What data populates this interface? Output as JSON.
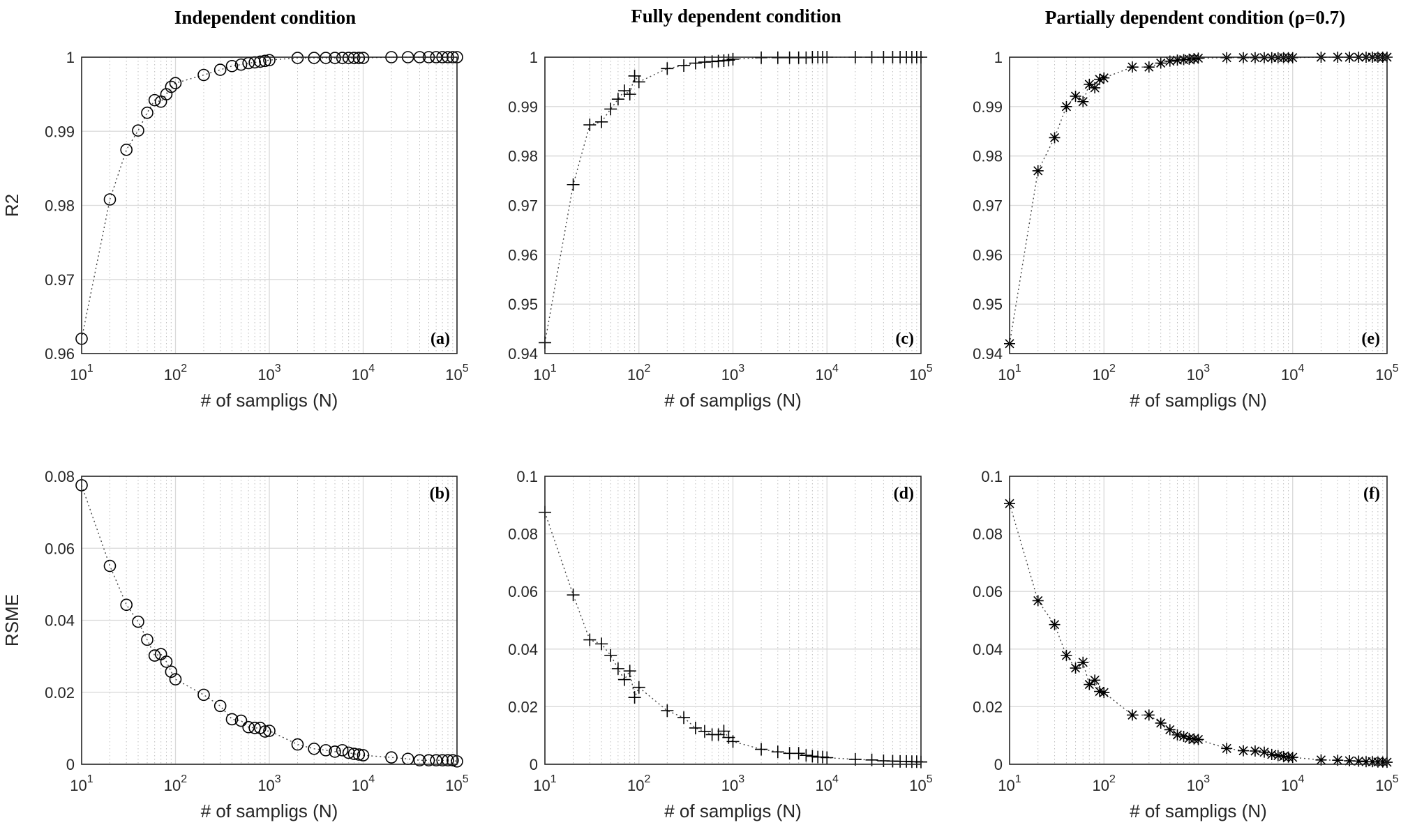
{
  "figure": {
    "col_titles": [
      "Independent condition",
      "Fully dependent condition",
      "Partially dependent condition (ρ=0.7)"
    ],
    "row_ylabels": [
      "R2",
      "RSME"
    ]
  },
  "chart_data": [
    {
      "id": "a",
      "type": "scatter",
      "tag": "(a)",
      "marker": "circle",
      "xlabel": "# of sampligs (N)",
      "ylabel": "R2",
      "xscale": "log",
      "xlim": [
        10,
        100000
      ],
      "ylim": [
        0.96,
        1.0
      ],
      "yticks": [
        "0.96",
        "0.97",
        "0.98",
        "0.99",
        "1"
      ],
      "ytick_values": [
        0.96,
        0.97,
        0.98,
        0.99,
        1.0
      ],
      "xticks": [
        {
          "base": "10",
          "exp": "1"
        },
        {
          "base": "10",
          "exp": "2"
        },
        {
          "base": "10",
          "exp": "3"
        },
        {
          "base": "10",
          "exp": "4"
        },
        {
          "base": "10",
          "exp": "5"
        }
      ],
      "x": [
        10,
        20,
        30,
        40,
        50,
        60,
        70,
        80,
        90,
        100,
        200,
        300,
        400,
        500,
        600,
        700,
        800,
        900,
        1000,
        2000,
        3000,
        4000,
        5000,
        6000,
        7000,
        8000,
        9000,
        10000,
        20000,
        30000,
        40000,
        50000,
        60000,
        70000,
        80000,
        90000,
        100000
      ],
      "y": [
        0.962,
        0.9808,
        0.9875,
        0.9901,
        0.9925,
        0.9942,
        0.994,
        0.995,
        0.996,
        0.9965,
        0.9976,
        0.9983,
        0.9988,
        0.999,
        0.9992,
        0.9993,
        0.9994,
        0.9995,
        0.9996,
        0.9999,
        0.9999,
        0.9999,
        0.9999,
        0.9999,
        0.9999,
        0.9999,
        0.9999,
        0.9999,
        1.0,
        1.0,
        1.0,
        1.0,
        1.0,
        1.0,
        1.0,
        1.0,
        1.0
      ]
    },
    {
      "id": "c",
      "type": "scatter",
      "tag": "(c)",
      "marker": "plus",
      "xlabel": "# of sampligs (N)",
      "ylabel": "",
      "xscale": "log",
      "xlim": [
        10,
        100000
      ],
      "ylim": [
        0.94,
        1.0
      ],
      "yticks": [
        "0.94",
        "0.95",
        "0.96",
        "0.97",
        "0.98",
        "0.99",
        "1"
      ],
      "ytick_values": [
        0.94,
        0.95,
        0.96,
        0.97,
        0.98,
        0.99,
        1.0
      ],
      "xticks": [
        {
          "base": "10",
          "exp": "1"
        },
        {
          "base": "10",
          "exp": "2"
        },
        {
          "base": "10",
          "exp": "3"
        },
        {
          "base": "10",
          "exp": "4"
        },
        {
          "base": "10",
          "exp": "5"
        }
      ],
      "x": [
        10,
        20,
        30,
        40,
        50,
        60,
        70,
        80,
        90,
        100,
        200,
        300,
        400,
        500,
        600,
        700,
        800,
        900,
        1000,
        2000,
        3000,
        4000,
        5000,
        6000,
        7000,
        8000,
        9000,
        10000,
        20000,
        30000,
        40000,
        50000,
        60000,
        70000,
        80000,
        90000,
        100000
      ],
      "y": [
        0.9422,
        0.9742,
        0.9863,
        0.9869,
        0.9895,
        0.9915,
        0.9932,
        0.9925,
        0.9962,
        0.995,
        0.9977,
        0.9983,
        0.9988,
        0.999,
        0.9991,
        0.9992,
        0.9993,
        0.9994,
        0.9996,
        0.9999,
        0.9999,
        0.9999,
        0.9999,
        0.9999,
        1.0,
        1.0,
        1.0,
        1.0,
        1.0,
        1.0,
        1.0,
        1.0,
        1.0,
        1.0,
        1.0,
        1.0,
        1.0
      ]
    },
    {
      "id": "e",
      "type": "scatter",
      "tag": "(e)",
      "marker": "asterisk",
      "xlabel": "# of sampligs (N)",
      "ylabel": "",
      "xscale": "log",
      "xlim": [
        10,
        100000
      ],
      "ylim": [
        0.94,
        1.0
      ],
      "yticks": [
        "0.94",
        "0.95",
        "0.96",
        "0.97",
        "0.98",
        "0.99",
        "1"
      ],
      "ytick_values": [
        0.94,
        0.95,
        0.96,
        0.97,
        0.98,
        0.99,
        1.0
      ],
      "xticks": [
        {
          "base": "10",
          "exp": "1"
        },
        {
          "base": "10",
          "exp": "2"
        },
        {
          "base": "10",
          "exp": "3"
        },
        {
          "base": "10",
          "exp": "4"
        },
        {
          "base": "10",
          "exp": "5"
        }
      ],
      "x": [
        10,
        20,
        30,
        40,
        50,
        60,
        70,
        80,
        90,
        100,
        200,
        300,
        400,
        500,
        600,
        700,
        800,
        900,
        1000,
        2000,
        3000,
        4000,
        5000,
        6000,
        7000,
        8000,
        9000,
        10000,
        20000,
        30000,
        40000,
        50000,
        60000,
        70000,
        80000,
        90000,
        100000
      ],
      "y": [
        0.942,
        0.977,
        0.9837,
        0.99,
        0.9921,
        0.991,
        0.9945,
        0.9938,
        0.9955,
        0.9958,
        0.998,
        0.998,
        0.9988,
        0.9992,
        0.9994,
        0.9995,
        0.9996,
        0.9997,
        0.9998,
        0.9999,
        0.9999,
        0.9999,
        0.9999,
        0.9999,
        0.9999,
        0.9999,
        0.9999,
        0.9999,
        1.0,
        1.0,
        1.0,
        1.0,
        1.0,
        1.0,
        1.0,
        1.0,
        1.0
      ]
    },
    {
      "id": "b",
      "type": "scatter",
      "tag": "(b)",
      "marker": "circle",
      "xlabel": "# of sampligs (N)",
      "ylabel": "RSME",
      "xscale": "log",
      "xlim": [
        10,
        100000
      ],
      "ylim": [
        0,
        0.08
      ],
      "yticks": [
        "0",
        "0.02",
        "0.04",
        "0.06",
        "0.08"
      ],
      "ytick_values": [
        0,
        0.02,
        0.04,
        0.06,
        0.08
      ],
      "xticks": [
        {
          "base": "10",
          "exp": "1"
        },
        {
          "base": "10",
          "exp": "2"
        },
        {
          "base": "10",
          "exp": "3"
        },
        {
          "base": "10",
          "exp": "4"
        },
        {
          "base": "10",
          "exp": "5"
        }
      ],
      "x": [
        10,
        20,
        30,
        40,
        50,
        60,
        70,
        80,
        90,
        100,
        200,
        300,
        400,
        500,
        600,
        700,
        800,
        900,
        1000,
        2000,
        3000,
        4000,
        5000,
        6000,
        7000,
        8000,
        9000,
        10000,
        20000,
        30000,
        40000,
        50000,
        60000,
        70000,
        80000,
        90000,
        100000
      ],
      "y": [
        0.0775,
        0.0551,
        0.0443,
        0.0396,
        0.0346,
        0.0302,
        0.0306,
        0.0285,
        0.0257,
        0.0236,
        0.0193,
        0.0162,
        0.0125,
        0.0121,
        0.0103,
        0.0101,
        0.0101,
        0.0091,
        0.0093,
        0.0055,
        0.0043,
        0.0039,
        0.0035,
        0.0039,
        0.0032,
        0.0029,
        0.0027,
        0.0025,
        0.0019,
        0.0015,
        0.0011,
        0.0011,
        0.0011,
        0.0011,
        0.0011,
        0.0011,
        0.0008
      ]
    },
    {
      "id": "d",
      "type": "scatter",
      "tag": "(d)",
      "marker": "plus",
      "xlabel": "# of sampligs (N)",
      "ylabel": "",
      "xscale": "log",
      "xlim": [
        10,
        100000
      ],
      "ylim": [
        0,
        0.1
      ],
      "yticks": [
        "0",
        "0.02",
        "0.04",
        "0.06",
        "0.08",
        "0.1"
      ],
      "ytick_values": [
        0,
        0.02,
        0.04,
        0.06,
        0.08,
        0.1
      ],
      "xticks": [
        {
          "base": "10",
          "exp": "1"
        },
        {
          "base": "10",
          "exp": "2"
        },
        {
          "base": "10",
          "exp": "3"
        },
        {
          "base": "10",
          "exp": "4"
        },
        {
          "base": "10",
          "exp": "5"
        }
      ],
      "x": [
        10,
        20,
        30,
        40,
        50,
        60,
        70,
        80,
        90,
        100,
        200,
        300,
        400,
        500,
        600,
        700,
        800,
        900,
        1000,
        2000,
        3000,
        4000,
        5000,
        6000,
        7000,
        8000,
        9000,
        10000,
        20000,
        30000,
        40000,
        50000,
        60000,
        70000,
        80000,
        90000,
        100000
      ],
      "y": [
        0.0875,
        0.0588,
        0.0432,
        0.0418,
        0.0378,
        0.0332,
        0.0294,
        0.0324,
        0.0232,
        0.0267,
        0.0186,
        0.0162,
        0.0126,
        0.0114,
        0.0103,
        0.0103,
        0.0115,
        0.0093,
        0.0079,
        0.0052,
        0.0043,
        0.0038,
        0.0038,
        0.0031,
        0.0028,
        0.0025,
        0.0025,
        0.0023,
        0.0017,
        0.0015,
        0.0012,
        0.0011,
        0.001,
        0.001,
        0.0009,
        0.0009,
        0.0008
      ]
    },
    {
      "id": "f",
      "type": "scatter",
      "tag": "(f)",
      "marker": "asterisk",
      "xlabel": "# of sampligs (N)",
      "ylabel": "",
      "xscale": "log",
      "xlim": [
        10,
        100000
      ],
      "ylim": [
        0,
        0.1
      ],
      "yticks": [
        "0",
        "0.02",
        "0.04",
        "0.06",
        "0.08",
        "0.1"
      ],
      "ytick_values": [
        0,
        0.02,
        0.04,
        0.06,
        0.08,
        0.1
      ],
      "xticks": [
        {
          "base": "10",
          "exp": "1"
        },
        {
          "base": "10",
          "exp": "2"
        },
        {
          "base": "10",
          "exp": "3"
        },
        {
          "base": "10",
          "exp": "4"
        },
        {
          "base": "10",
          "exp": "5"
        }
      ],
      "x": [
        10,
        20,
        30,
        40,
        50,
        60,
        70,
        80,
        90,
        100,
        200,
        300,
        400,
        500,
        600,
        700,
        800,
        900,
        1000,
        2000,
        3000,
        4000,
        5000,
        6000,
        7000,
        8000,
        9000,
        10000,
        20000,
        30000,
        40000,
        50000,
        60000,
        70000,
        80000,
        90000,
        100000
      ],
      "y": [
        0.0905,
        0.0568,
        0.0485,
        0.0378,
        0.0334,
        0.0354,
        0.0277,
        0.0292,
        0.0253,
        0.0249,
        0.0171,
        0.0171,
        0.0143,
        0.012,
        0.0102,
        0.0097,
        0.009,
        0.0088,
        0.0086,
        0.0055,
        0.0047,
        0.0046,
        0.0042,
        0.0034,
        0.003,
        0.0027,
        0.0025,
        0.0024,
        0.0015,
        0.0014,
        0.0012,
        0.0011,
        0.0009,
        0.0009,
        0.0008,
        0.0008,
        0.0007
      ]
    }
  ]
}
